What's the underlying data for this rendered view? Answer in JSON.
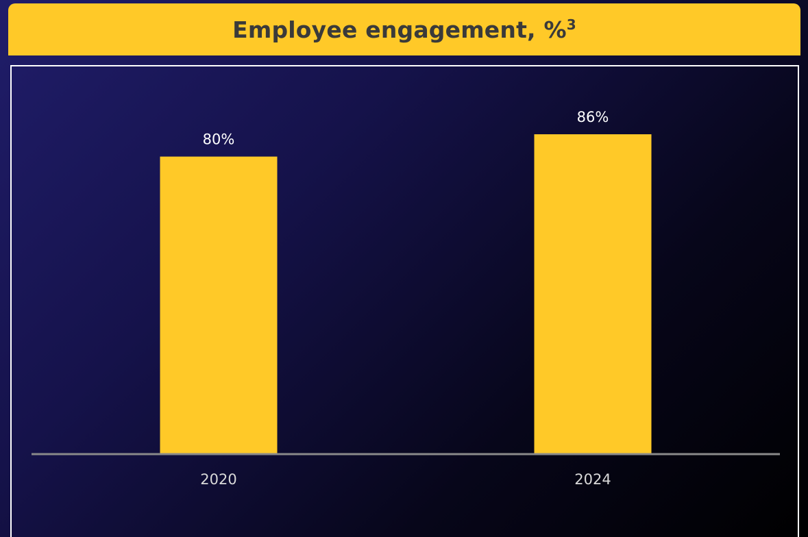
{
  "header": {
    "title": "Employee engagement, %",
    "title_sup": "3"
  },
  "colors": {
    "bar": "#ffc928",
    "header_bg": "#ffc928",
    "title_text": "#3a3a3a",
    "baseline": "#8a8a8a",
    "value_label": "#ffffff",
    "category_label": "#d9d9d9"
  },
  "chart_data": {
    "type": "bar",
    "title": "Employee engagement, %3",
    "categories": [
      "2020",
      "2024"
    ],
    "values": [
      80,
      86
    ],
    "value_labels": [
      "80%",
      "86%"
    ],
    "xlabel": "",
    "ylabel": "",
    "ylim": [
      0,
      100
    ],
    "grid": false,
    "legend": "none"
  }
}
